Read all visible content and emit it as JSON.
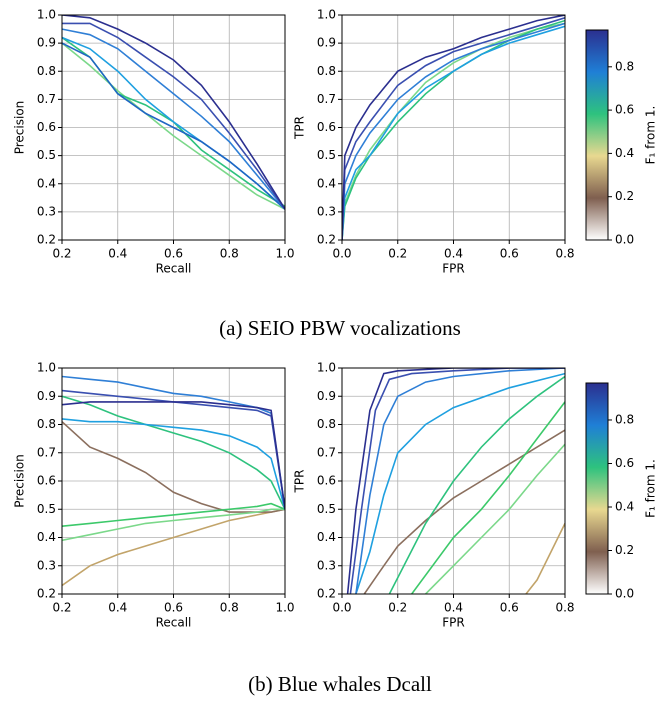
{
  "chart_data": [
    {
      "type": "line",
      "xlabel": "Recall",
      "ylabel": "Precision",
      "xlim": [
        0.2,
        1.0
      ],
      "ylim": [
        0.2,
        1.0
      ],
      "grid": true,
      "xticks": [
        0.2,
        0.4,
        0.6,
        0.8,
        {
          "value": 1.0,
          "label": "1.0"
        }
      ],
      "yticks": [
        0.2,
        0.3,
        0.4,
        0.5,
        0.6,
        0.7,
        0.8,
        0.9,
        {
          "value": 1.0,
          "label": "1.0"
        }
      ],
      "series": [
        {
          "color": "#7bd88a",
          "x": [
            0.2,
            0.3,
            0.4,
            0.5,
            0.6,
            0.7,
            0.8,
            0.9,
            1.0
          ],
          "y": [
            0.9,
            0.82,
            0.73,
            0.65,
            0.57,
            0.5,
            0.43,
            0.36,
            0.31
          ]
        },
        {
          "color": "#2ec27e",
          "x": [
            0.2,
            0.3,
            0.4,
            0.5,
            0.6,
            0.7,
            0.8,
            0.9,
            1.0
          ],
          "y": [
            0.92,
            0.85,
            0.72,
            0.68,
            0.62,
            0.52,
            0.45,
            0.38,
            0.32
          ]
        },
        {
          "color": "#1fa0e0",
          "x": [
            0.2,
            0.3,
            0.4,
            0.5,
            0.6,
            0.7,
            0.8,
            0.9,
            1.0
          ],
          "y": [
            0.92,
            0.88,
            0.8,
            0.7,
            0.62,
            0.55,
            0.48,
            0.4,
            0.31
          ]
        },
        {
          "color": "#1f66c4",
          "x": [
            0.2,
            0.3,
            0.4,
            0.5,
            0.6,
            0.7,
            0.8,
            0.9,
            1.0
          ],
          "y": [
            0.9,
            0.85,
            0.72,
            0.65,
            0.6,
            0.55,
            0.48,
            0.4,
            0.31
          ]
        },
        {
          "color": "#2f7fd6",
          "x": [
            0.2,
            0.3,
            0.4,
            0.5,
            0.6,
            0.7,
            0.8,
            0.9,
            1.0
          ],
          "y": [
            0.95,
            0.93,
            0.88,
            0.8,
            0.72,
            0.64,
            0.55,
            0.43,
            0.31
          ]
        },
        {
          "color": "#3a4fb0",
          "x": [
            0.2,
            0.3,
            0.4,
            0.5,
            0.6,
            0.7,
            0.8,
            0.9,
            1.0
          ],
          "y": [
            0.97,
            0.97,
            0.92,
            0.85,
            0.78,
            0.7,
            0.58,
            0.45,
            0.31
          ]
        },
        {
          "color": "#2b2f8f",
          "x": [
            0.2,
            0.3,
            0.4,
            0.5,
            0.6,
            0.7,
            0.8,
            0.9,
            1.0
          ],
          "y": [
            1.0,
            0.99,
            0.95,
            0.9,
            0.84,
            0.75,
            0.62,
            0.47,
            0.31
          ]
        }
      ]
    },
    {
      "type": "line",
      "xlabel": "FPR",
      "ylabel": "TPR",
      "xlim": [
        0.0,
        0.8
      ],
      "ylim": [
        0.2,
        1.0
      ],
      "grid": true,
      "xticks": [
        {
          "value": 0.0,
          "label": "0.0"
        },
        0.2,
        0.4,
        0.6,
        0.8
      ],
      "yticks": [
        0.2,
        0.3,
        0.4,
        0.5,
        0.6,
        0.7,
        0.8,
        0.9,
        {
          "value": 1.0,
          "label": "1.0"
        }
      ],
      "series": [
        {
          "color": "#7bd88a",
          "x": [
            0,
            0.01,
            0.05,
            0.1,
            0.2,
            0.3,
            0.4,
            0.5,
            0.6,
            0.7,
            0.8
          ],
          "y": [
            0.2,
            0.33,
            0.43,
            0.52,
            0.65,
            0.76,
            0.83,
            0.88,
            0.92,
            0.95,
            0.97
          ]
        },
        {
          "color": "#2ec27e",
          "x": [
            0,
            0.01,
            0.05,
            0.1,
            0.2,
            0.3,
            0.4,
            0.5,
            0.6,
            0.7,
            0.8
          ],
          "y": [
            0.2,
            0.32,
            0.42,
            0.5,
            0.62,
            0.72,
            0.8,
            0.86,
            0.91,
            0.95,
            0.98
          ]
        },
        {
          "color": "#1fa0e0",
          "x": [
            0,
            0.01,
            0.05,
            0.1,
            0.2,
            0.3,
            0.4,
            0.5,
            0.6,
            0.7,
            0.8
          ],
          "y": [
            0.2,
            0.35,
            0.45,
            0.5,
            0.65,
            0.74,
            0.8,
            0.86,
            0.9,
            0.93,
            0.96
          ]
        },
        {
          "color": "#2f7fd6",
          "x": [
            0,
            0.01,
            0.05,
            0.1,
            0.2,
            0.3,
            0.4,
            0.5,
            0.6,
            0.7,
            0.8
          ],
          "y": [
            0.2,
            0.4,
            0.5,
            0.58,
            0.7,
            0.78,
            0.84,
            0.88,
            0.91,
            0.94,
            0.97
          ]
        },
        {
          "color": "#3a4fb0",
          "x": [
            0,
            0.01,
            0.05,
            0.1,
            0.2,
            0.3,
            0.4,
            0.5,
            0.6,
            0.7,
            0.8
          ],
          "y": [
            0.2,
            0.45,
            0.55,
            0.62,
            0.75,
            0.82,
            0.87,
            0.9,
            0.93,
            0.96,
            0.99
          ]
        },
        {
          "color": "#2b2f8f",
          "x": [
            0,
            0.01,
            0.05,
            0.1,
            0.2,
            0.3,
            0.4,
            0.5,
            0.6,
            0.7,
            0.8
          ],
          "y": [
            0.2,
            0.5,
            0.6,
            0.68,
            0.8,
            0.85,
            0.88,
            0.92,
            0.95,
            0.98,
            1.0
          ]
        }
      ]
    },
    {
      "type": "colorbar",
      "label": "F₁ from 1.",
      "clim": [
        0.0,
        0.97
      ],
      "colors": [
        "#ffffff",
        "#7f5f4f",
        "#e8d890",
        "#2ec27e",
        "#1f7fd6",
        "#2b2f8f"
      ],
      "ticks": [
        {
          "value": 0.0,
          "label": "0.0"
        },
        0.2,
        0.4,
        0.6,
        0.8
      ]
    },
    {
      "type": "line",
      "xlabel": "Recall",
      "ylabel": "Precision",
      "xlim": [
        0.2,
        1.0
      ],
      "ylim": [
        0.2,
        1.0
      ],
      "grid": true,
      "xticks": [
        0.2,
        0.4,
        0.6,
        0.8,
        {
          "value": 1.0,
          "label": "1.0"
        }
      ],
      "yticks": [
        0.2,
        0.3,
        0.4,
        0.5,
        0.6,
        0.7,
        0.8,
        0.9,
        {
          "value": 1.0,
          "label": "1.0"
        }
      ],
      "series": [
        {
          "color": "#c2a46a",
          "x": [
            0.2,
            0.3,
            0.4,
            0.5,
            0.6,
            0.7,
            0.8,
            0.9,
            0.95,
            1.0
          ],
          "y": [
            0.23,
            0.3,
            0.34,
            0.37,
            0.4,
            0.43,
            0.46,
            0.48,
            0.49,
            0.5
          ]
        },
        {
          "color": "#8b6f5e",
          "x": [
            0.2,
            0.3,
            0.4,
            0.5,
            0.6,
            0.7,
            0.8,
            0.9,
            0.95,
            1.0
          ],
          "y": [
            0.81,
            0.72,
            0.68,
            0.63,
            0.56,
            0.52,
            0.49,
            0.49,
            0.49,
            0.5
          ]
        },
        {
          "color": "#7bd88a",
          "x": [
            0.2,
            0.3,
            0.4,
            0.5,
            0.6,
            0.7,
            0.8,
            0.9,
            0.95,
            1.0
          ],
          "y": [
            0.39,
            0.41,
            0.43,
            0.45,
            0.46,
            0.47,
            0.48,
            0.49,
            0.5,
            0.5
          ]
        },
        {
          "color": "#3cc96a",
          "x": [
            0.2,
            0.3,
            0.4,
            0.5,
            0.6,
            0.7,
            0.8,
            0.9,
            0.95,
            1.0
          ],
          "y": [
            0.44,
            0.45,
            0.46,
            0.47,
            0.48,
            0.49,
            0.5,
            0.51,
            0.52,
            0.5
          ]
        },
        {
          "color": "#2ec27e",
          "x": [
            0.2,
            0.3,
            0.4,
            0.5,
            0.6,
            0.7,
            0.8,
            0.9,
            0.95,
            1.0
          ],
          "y": [
            0.9,
            0.87,
            0.83,
            0.8,
            0.77,
            0.74,
            0.7,
            0.64,
            0.6,
            0.5
          ]
        },
        {
          "color": "#1fa0e0",
          "x": [
            0.2,
            0.3,
            0.4,
            0.5,
            0.6,
            0.7,
            0.8,
            0.9,
            0.95,
            1.0
          ],
          "y": [
            0.82,
            0.81,
            0.81,
            0.8,
            0.79,
            0.78,
            0.76,
            0.72,
            0.68,
            0.5
          ]
        },
        {
          "color": "#2f7fd6",
          "x": [
            0.2,
            0.3,
            0.4,
            0.5,
            0.6,
            0.7,
            0.8,
            0.9,
            0.95,
            1.0
          ],
          "y": [
            0.97,
            0.96,
            0.95,
            0.93,
            0.91,
            0.9,
            0.88,
            0.86,
            0.84,
            0.5
          ]
        },
        {
          "color": "#3a4fb0",
          "x": [
            0.2,
            0.3,
            0.4,
            0.5,
            0.6,
            0.7,
            0.8,
            0.9,
            0.95,
            1.0
          ],
          "y": [
            0.92,
            0.91,
            0.9,
            0.89,
            0.88,
            0.87,
            0.86,
            0.85,
            0.83,
            0.5
          ]
        },
        {
          "color": "#2b2f8f",
          "x": [
            0.2,
            0.3,
            0.4,
            0.5,
            0.6,
            0.7,
            0.8,
            0.9,
            0.95,
            1.0
          ],
          "y": [
            0.87,
            0.88,
            0.88,
            0.88,
            0.88,
            0.88,
            0.87,
            0.86,
            0.85,
            0.5
          ]
        }
      ]
    },
    {
      "type": "line",
      "xlabel": "FPR",
      "ylabel": "TPR",
      "xlim": [
        0.0,
        0.8
      ],
      "ylim": [
        0.2,
        1.0
      ],
      "grid": true,
      "xticks": [
        {
          "value": 0.0,
          "label": "0.0"
        },
        0.2,
        0.4,
        0.6,
        0.8
      ],
      "yticks": [
        0.2,
        0.3,
        0.4,
        0.5,
        0.6,
        0.7,
        0.8,
        0.9,
        {
          "value": 1.0,
          "label": "1.0"
        }
      ],
      "series": [
        {
          "color": "#c2a46a",
          "x": [
            0.66,
            0.7,
            0.75,
            0.8
          ],
          "y": [
            0.2,
            0.25,
            0.35,
            0.45
          ]
        },
        {
          "color": "#8b6f5e",
          "x": [
            0.08,
            0.15,
            0.2,
            0.3,
            0.4,
            0.5,
            0.6,
            0.7,
            0.8
          ],
          "y": [
            0.2,
            0.3,
            0.37,
            0.46,
            0.54,
            0.6,
            0.66,
            0.72,
            0.78
          ]
        },
        {
          "color": "#7bd88a",
          "x": [
            0.3,
            0.4,
            0.5,
            0.6,
            0.7,
            0.8
          ],
          "y": [
            0.2,
            0.3,
            0.4,
            0.5,
            0.62,
            0.73
          ]
        },
        {
          "color": "#3cc96a",
          "x": [
            0.25,
            0.4,
            0.5,
            0.6,
            0.7,
            0.8
          ],
          "y": [
            0.2,
            0.4,
            0.5,
            0.62,
            0.75,
            0.88
          ]
        },
        {
          "color": "#2ec27e",
          "x": [
            0.17,
            0.3,
            0.4,
            0.5,
            0.6,
            0.7,
            0.8
          ],
          "y": [
            0.2,
            0.45,
            0.6,
            0.72,
            0.82,
            0.9,
            0.97
          ]
        },
        {
          "color": "#1fa0e0",
          "x": [
            0.05,
            0.1,
            0.15,
            0.2,
            0.3,
            0.4,
            0.6,
            0.8
          ],
          "y": [
            0.2,
            0.35,
            0.55,
            0.7,
            0.8,
            0.86,
            0.93,
            0.98
          ]
        },
        {
          "color": "#2f7fd6",
          "x": [
            0.05,
            0.1,
            0.15,
            0.2,
            0.3,
            0.4,
            0.6,
            0.8
          ],
          "y": [
            0.2,
            0.55,
            0.8,
            0.9,
            0.95,
            0.97,
            0.99,
            1.0
          ]
        },
        {
          "color": "#3a4fb0",
          "x": [
            0.03,
            0.07,
            0.12,
            0.17,
            0.25,
            0.4,
            0.6,
            0.8
          ],
          "y": [
            0.2,
            0.5,
            0.85,
            0.96,
            0.98,
            0.99,
            1.0,
            1.0
          ]
        },
        {
          "color": "#2b2f8f",
          "x": [
            0.02,
            0.05,
            0.1,
            0.15,
            0.2,
            0.4,
            0.6,
            0.8
          ],
          "y": [
            0.2,
            0.5,
            0.85,
            0.98,
            0.99,
            1.0,
            1.0,
            1.0
          ]
        }
      ]
    },
    {
      "type": "colorbar",
      "label": "F₁ from 1.",
      "clim": [
        0.0,
        0.97
      ],
      "colors": [
        "#ffffff",
        "#7f5f4f",
        "#e8d890",
        "#2ec27e",
        "#1f7fd6",
        "#2b2f8f"
      ],
      "ticks": [
        {
          "value": 0.0,
          "label": "0.0"
        },
        0.2,
        0.4,
        0.6,
        0.8
      ]
    }
  ],
  "captions": [
    "(a) SEIO PBW vocalizations",
    "(b) Blue whales Dcall"
  ]
}
